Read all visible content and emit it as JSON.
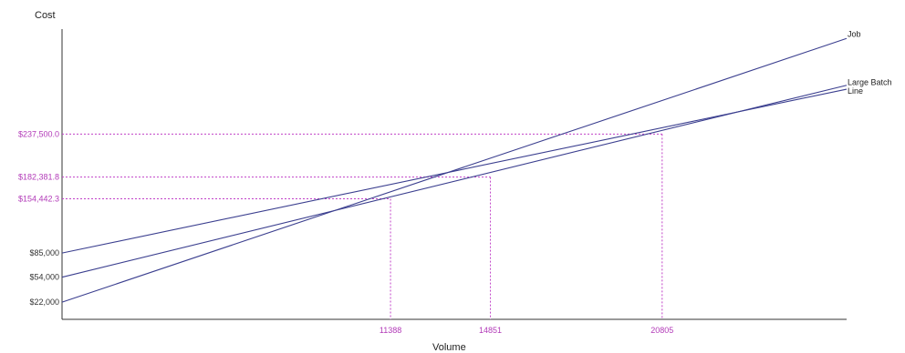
{
  "chart_data": {
    "type": "line",
    "xlabel": "Volume",
    "ylabel": "Cost",
    "series": [
      {
        "name": "Job",
        "fixed_cost": 22000,
        "end_value": 360000,
        "color": "#3b3f8f"
      },
      {
        "name": "Large Batch",
        "fixed_cost": 54000,
        "end_value": 300000,
        "color": "#3b3f8f"
      },
      {
        "name": "Line",
        "fixed_cost": 85000,
        "end_value": 295000,
        "color": "#3b3f8f"
      }
    ],
    "y_ticks": [
      {
        "label": "$22,000",
        "value": 22000
      },
      {
        "label": "$54,000",
        "value": 54000
      },
      {
        "label": "$85,000",
        "value": 85000
      }
    ],
    "intersections": [
      {
        "x_label": "11388",
        "x": 11388,
        "y_label": "$154,442.3",
        "y": 154442.3
      },
      {
        "x_label": "14851",
        "x": 14851,
        "y_label": "$182,381.8",
        "y": 182381.8
      },
      {
        "x_label": "20805",
        "x": 20805,
        "y_label": "$237,500.0",
        "y": 237500.0
      }
    ],
    "xlim": [
      0,
      27200
    ],
    "ylim": [
      0,
      372000
    ],
    "grid": false,
    "guide_color": "#c040c8"
  }
}
